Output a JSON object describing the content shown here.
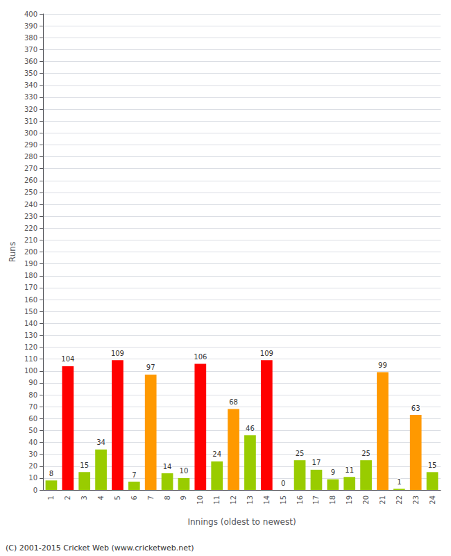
{
  "chart_data": {
    "type": "bar",
    "categories": [
      "1",
      "2",
      "3",
      "4",
      "5",
      "6",
      "7",
      "8",
      "9",
      "10",
      "11",
      "12",
      "13",
      "14",
      "15",
      "16",
      "17",
      "18",
      "19",
      "20",
      "21",
      "22",
      "23",
      "24"
    ],
    "values": [
      8,
      104,
      15,
      34,
      109,
      7,
      97,
      14,
      10,
      106,
      24,
      68,
      46,
      109,
      0,
      25,
      17,
      9,
      11,
      25,
      99,
      1,
      63,
      15
    ],
    "colors": [
      "#99cc00",
      "#ff0000",
      "#99cc00",
      "#99cc00",
      "#ff0000",
      "#99cc00",
      "#ff9900",
      "#99cc00",
      "#99cc00",
      "#ff0000",
      "#99cc00",
      "#ff9900",
      "#99cc00",
      "#ff0000",
      "#99cc00",
      "#99cc00",
      "#99cc00",
      "#99cc00",
      "#99cc00",
      "#99cc00",
      "#ff9900",
      "#99cc00",
      "#ff9900",
      "#99cc00"
    ],
    "xlabel": "Innings (oldest to newest)",
    "ylabel": "Runs",
    "ylim": [
      0,
      400
    ],
    "yticks": [
      0,
      10,
      20,
      30,
      40,
      50,
      60,
      70,
      80,
      90,
      100,
      110,
      120,
      130,
      140,
      150,
      160,
      170,
      180,
      190,
      200,
      210,
      220,
      230,
      240,
      250,
      260,
      270,
      280,
      290,
      300,
      310,
      320,
      330,
      340,
      350,
      360,
      370,
      380,
      390,
      400
    ],
    "grid": true,
    "data_labels": true,
    "annotations": [
      "(C) 2001-2015 Cricket Web (www.cricketweb.net)"
    ]
  }
}
